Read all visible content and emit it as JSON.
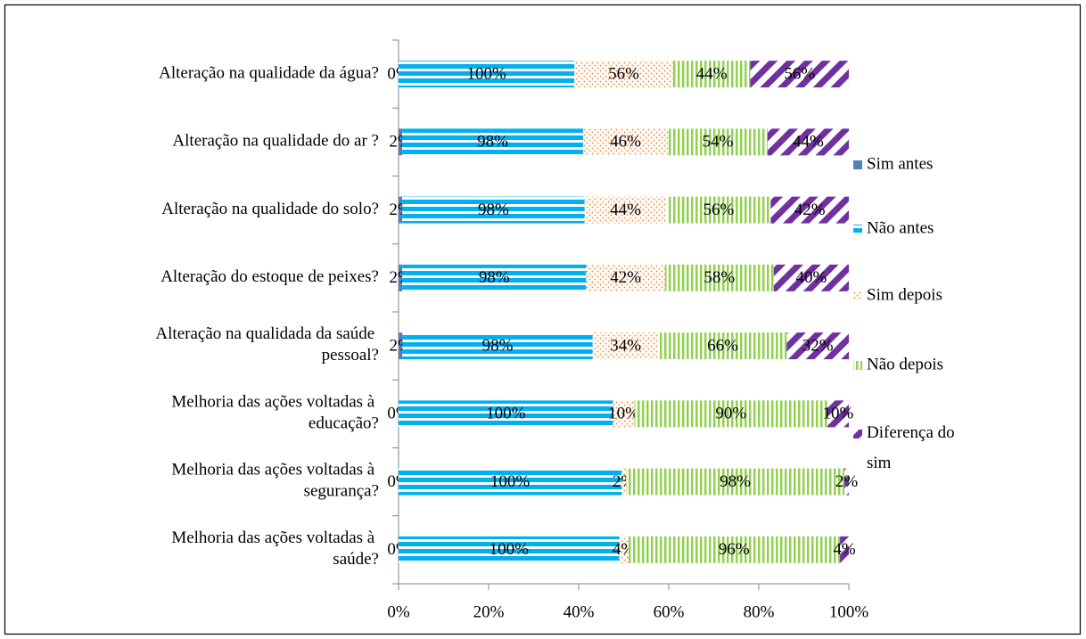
{
  "chart_data": {
    "type": "bar",
    "orientation": "horizontal",
    "stacked": "percent",
    "categories": [
      "Alteração na qualidade da água?",
      "Alteração na qualidade do ar ?",
      "Alteração na qualidade do solo?",
      "Alteração do estoque de peixes?",
      "Alteração na qualidada da saúde pessoal?",
      "Melhoria das ações voltadas à educação?",
      "Melhoria das ações voltadas à segurança?",
      "Melhoria das ações voltadas à saúde?"
    ],
    "series": [
      {
        "name": "Sim antes",
        "color": "#4f81bd",
        "pattern": "solid",
        "values": [
          0,
          2,
          2,
          2,
          2,
          0,
          0,
          0
        ],
        "value_labels": [
          "0%",
          "2%",
          "2%",
          "2%",
          "2%",
          "0%",
          "0%",
          "0%"
        ]
      },
      {
        "name": "Não antes",
        "color": "#00b0f0",
        "pattern": "horizontal",
        "values": [
          100,
          98,
          98,
          98,
          98,
          100,
          100,
          100
        ],
        "value_labels": [
          "100%",
          "98%",
          "98%",
          "98%",
          "98%",
          "100%",
          "100%",
          "100%"
        ]
      },
      {
        "name": "Sim depois",
        "color": "#f79646",
        "pattern": "dots",
        "values": [
          56,
          46,
          44,
          42,
          34,
          10,
          2,
          4
        ],
        "value_labels": [
          "56%",
          "46%",
          "44%",
          "42%",
          "34%",
          "10%",
          "2%",
          "4%"
        ]
      },
      {
        "name": "Não depois",
        "color": "#92d050",
        "pattern": "vertical",
        "values": [
          44,
          54,
          56,
          58,
          66,
          90,
          98,
          96
        ],
        "value_labels": [
          "44%",
          "54%",
          "56%",
          "58%",
          "66%",
          "90%",
          "98%",
          "96%"
        ]
      },
      {
        "name": "Diferença do sim",
        "color": "#7030a0",
        "pattern": "diagonal",
        "values": [
          56,
          44,
          42,
          40,
          32,
          10,
          2,
          4
        ],
        "value_labels": [
          "56%",
          "44%",
          "42%",
          "40%",
          "32%",
          "10%",
          "2%",
          "4%"
        ]
      }
    ],
    "xlim": [
      0,
      100
    ],
    "xticks": [
      {
        "value": 0,
        "label": "0%"
      },
      {
        "value": 20,
        "label": "20%"
      },
      {
        "value": 40,
        "label": "40%"
      },
      {
        "value": 60,
        "label": "60%"
      },
      {
        "value": 80,
        "label": "80%"
      },
      {
        "value": 100,
        "label": "100%"
      }
    ],
    "grid": false,
    "legend": "right"
  }
}
